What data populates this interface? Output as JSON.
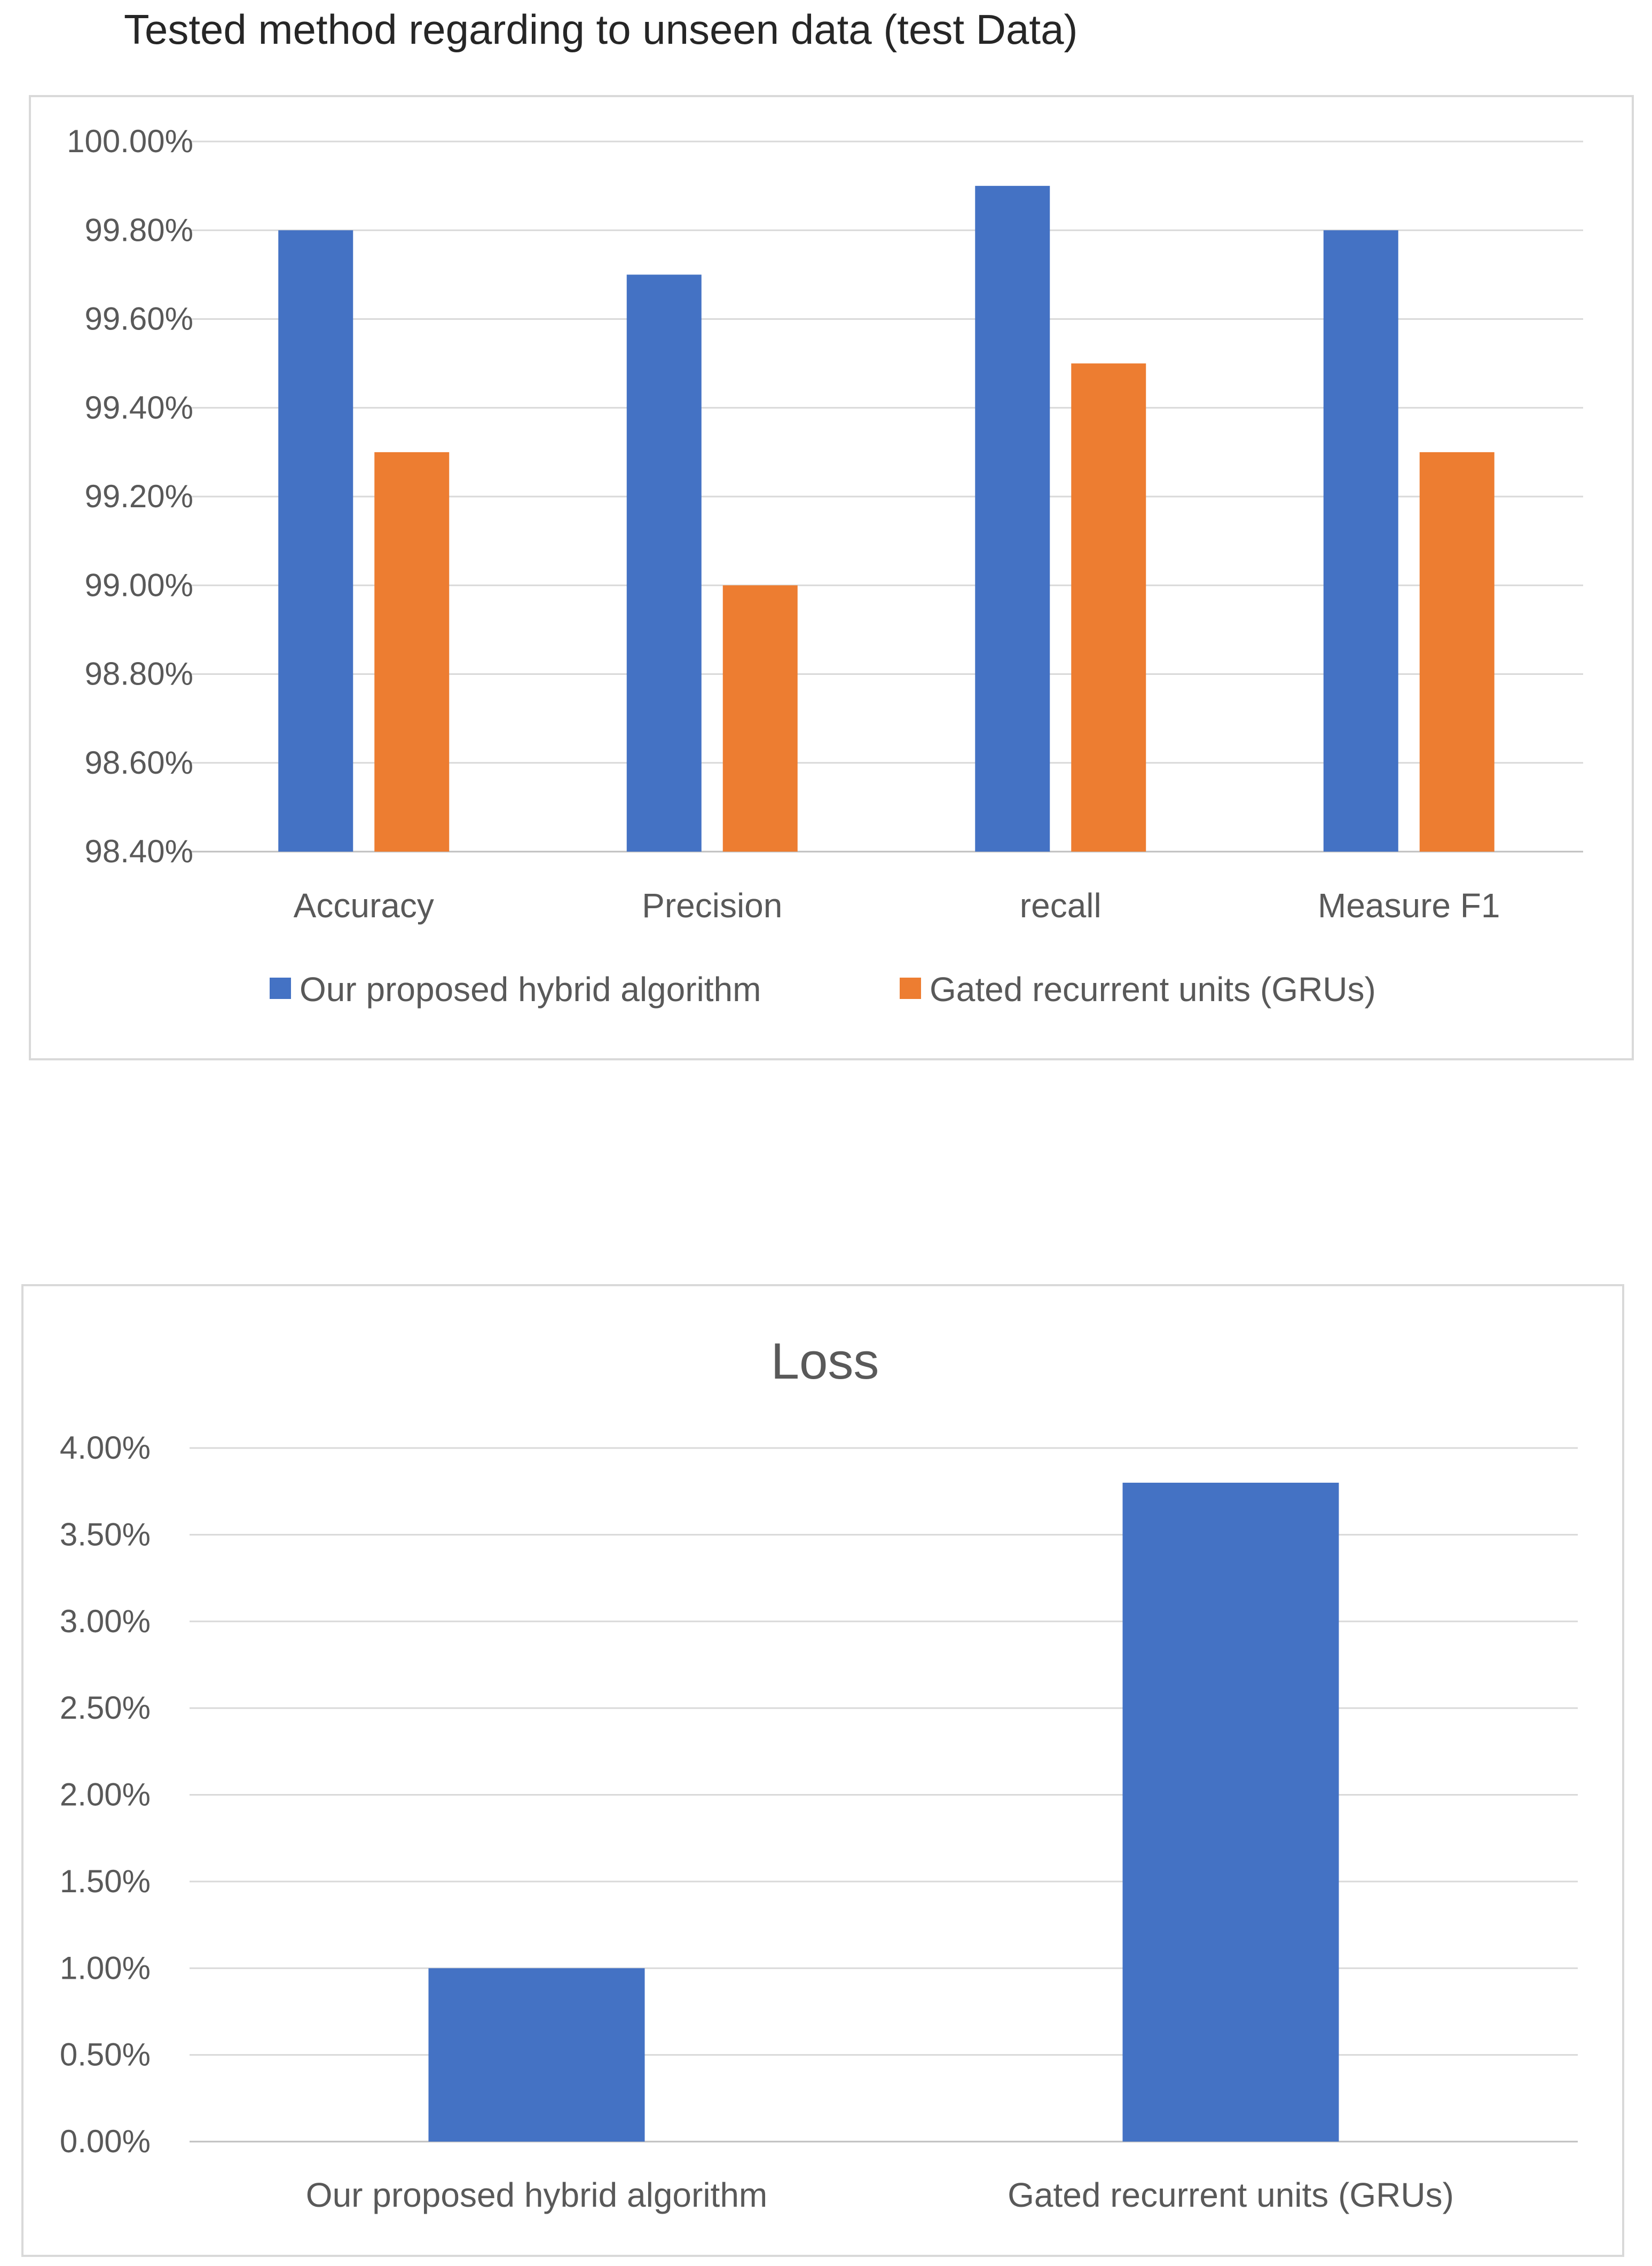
{
  "page_title": "Tested method regarding to unseen data (test Data)",
  "chart_data": [
    {
      "type": "bar",
      "title": "Tested method regarding to unseen data (test Data)",
      "categories": [
        "Accuracy",
        "Precision",
        "recall",
        "Measure F1"
      ],
      "series": [
        {
          "name": "Our proposed hybrid algorithm",
          "color": "#4472c4",
          "values": [
            99.8,
            99.7,
            99.9,
            99.8
          ]
        },
        {
          "name": "Gated recurrent units (GRUs)",
          "color": "#ed7d31",
          "values": [
            99.3,
            99.0,
            99.5,
            99.3
          ]
        }
      ],
      "ylim": [
        98.4,
        100.0
      ],
      "yticks": [
        "98.40%",
        "98.60%",
        "98.80%",
        "99.00%",
        "99.20%",
        "99.40%",
        "99.60%",
        "99.80%",
        "100.00%"
      ],
      "grid": true,
      "legend": "bottom"
    },
    {
      "type": "bar",
      "title": "Loss",
      "categories": [
        "Our proposed hybrid algorithm",
        "Gated recurrent units (GRUs)"
      ],
      "series": [
        {
          "name": "Loss",
          "color": "#4472c4",
          "values": [
            1.0,
            3.8
          ]
        }
      ],
      "ylim": [
        0,
        4.0
      ],
      "yticks": [
        "0.00%",
        "0.50%",
        "1.00%",
        "1.50%",
        "2.00%",
        "2.50%",
        "3.00%",
        "3.50%",
        "4.00%"
      ],
      "grid": true,
      "legend": "none"
    }
  ]
}
